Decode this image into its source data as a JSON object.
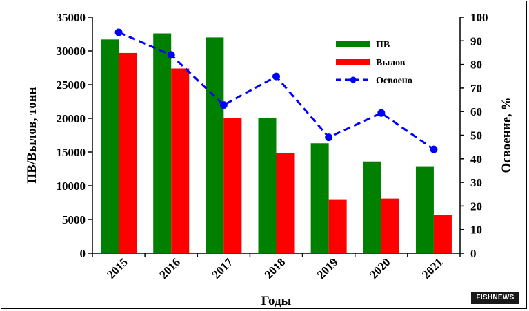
{
  "chart_data": {
    "type": "bar",
    "categories": [
      "2015",
      "2016",
      "2017",
      "2018",
      "2019",
      "2020",
      "2021"
    ],
    "series": [
      {
        "name": "ПВ",
        "kind": "bar",
        "axis": "left",
        "color": "#008000",
        "values": [
          31700,
          32600,
          32000,
          20000,
          16300,
          13600,
          12900
        ]
      },
      {
        "name": "Вылов",
        "kind": "bar",
        "axis": "left",
        "color": "#ff0000",
        "values": [
          29700,
          27400,
          20100,
          14900,
          8000,
          8100,
          5700
        ]
      },
      {
        "name": "Освоено",
        "kind": "line",
        "axis": "right",
        "color": "#0000ff",
        "values": [
          93.6,
          84.0,
          62.8,
          74.9,
          49.1,
          59.4,
          44.0
        ]
      }
    ],
    "xlabel": "Годы",
    "ylabel": "ПВ/Вылов, тонн",
    "y2label": "Освоение, %",
    "ylim": [
      0,
      35000
    ],
    "y2lim": [
      0,
      100
    ],
    "yticks": [
      "0",
      "5000",
      "10000",
      "15000",
      "20000",
      "25000",
      "30000",
      "35000"
    ],
    "y2ticks": [
      "0",
      "10",
      "20",
      "30",
      "40",
      "50",
      "60",
      "70",
      "80",
      "90",
      "100"
    ],
    "legend_position": "top-right",
    "grid": false
  },
  "watermark": "FISHNEWS"
}
